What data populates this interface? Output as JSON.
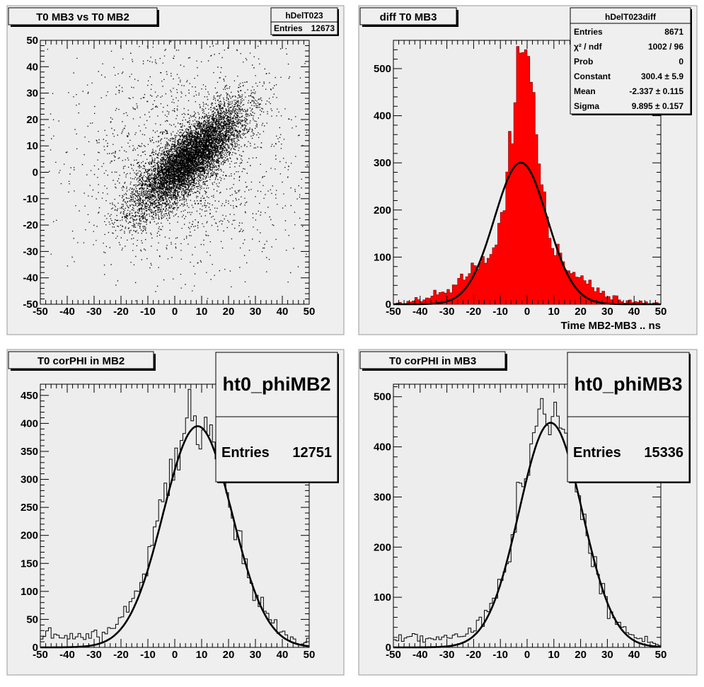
{
  "chart_data": [
    {
      "type": "scatter",
      "title": "T0 MB3 vs T0 MB2",
      "xlabel": "",
      "ylabel": "",
      "xlim": [
        -50,
        50
      ],
      "ylim": [
        -50,
        50
      ],
      "x_ticks": [
        "-50",
        "-40",
        "-30",
        "-20",
        "-10",
        "0",
        "10",
        "20",
        "30",
        "40",
        "50"
      ],
      "y_ticks": [
        "-50",
        "-40",
        "-30",
        "-20",
        "-10",
        "0",
        "10",
        "20",
        "30",
        "40",
        "50"
      ],
      "stats": {
        "name": "hDelT023",
        "rows": [
          {
            "label": "Entries",
            "value": "12673"
          }
        ]
      },
      "distribution": {
        "core": {
          "mean_x": 5,
          "mean_y": 5,
          "sigma_x": 10,
          "sigma_y": 10,
          "correlation": 0.8
        },
        "background_fraction": 0.18
      }
    },
    {
      "type": "bar",
      "title": "diff T0 MB3",
      "xlabel": "Time MB2-MB3  ..  ns",
      "ylabel": "",
      "xlim": [
        -50,
        50
      ],
      "ylim": [
        0,
        560
      ],
      "x_ticks": [
        "-50",
        "-40",
        "-30",
        "-20",
        "-10",
        "0",
        "10",
        "20",
        "30",
        "40",
        "50"
      ],
      "y_ticks": [
        "0",
        "100",
        "200",
        "300",
        "400",
        "500"
      ],
      "fill_color": "#ff0000",
      "bins": 100,
      "stats": {
        "name": "hDelT023diff",
        "rows": [
          {
            "label": "Entries",
            "value": "8671"
          },
          {
            "label": "χ² / ndf",
            "value": "1002 / 96"
          },
          {
            "label": "Prob",
            "value": "0"
          },
          {
            "label": "Constant",
            "value": "300.4 ± 5.9"
          },
          {
            "label": "Mean",
            "value": "-2.337 ± 0.115"
          },
          {
            "label": "Sigma",
            "value": "9.895 ± 0.157"
          }
        ]
      },
      "fit": {
        "function": "gaus",
        "constant": 300.4,
        "mean": -2.337,
        "sigma": 9.895
      },
      "shape": {
        "amplitude": 540,
        "mean": -1.2,
        "core_sigma": 4.2,
        "tail_sigma": 16,
        "tail_fraction": 0.27
      }
    },
    {
      "type": "bar",
      "title": "T0 corPHI in MB2",
      "xlabel": "",
      "ylabel": "",
      "xlim": [
        -50,
        50
      ],
      "ylim": [
        0,
        470
      ],
      "x_ticks": [
        "-50",
        "-40",
        "-30",
        "-20",
        "-10",
        "0",
        "10",
        "20",
        "30",
        "40",
        "50"
      ],
      "y_ticks": [
        "0",
        "50",
        "100",
        "150",
        "200",
        "250",
        "300",
        "350",
        "400",
        "450"
      ],
      "fill_color": "none",
      "bins": 100,
      "stats": {
        "name": "ht0_phiMB2",
        "rows": [
          {
            "label": "Entries",
            "value": "12751"
          }
        ]
      },
      "fit": {
        "function": "gaus",
        "constant": 395,
        "mean": 8.5,
        "sigma": 12.8
      },
      "shape": {
        "amplitude": 395,
        "mean": 8.0,
        "sigma": 12.5,
        "baseline": 15,
        "baseline_slope": -0.12
      }
    },
    {
      "type": "bar",
      "title": "T0 corPHI in MB3",
      "xlabel": "",
      "ylabel": "",
      "xlim": [
        -50,
        50
      ],
      "ylim": [
        0,
        525
      ],
      "x_ticks": [
        "-50",
        "-40",
        "-30",
        "-20",
        "-10",
        "0",
        "10",
        "20",
        "30",
        "40",
        "50"
      ],
      "y_ticks": [
        "0",
        "100",
        "200",
        "300",
        "400",
        "500"
      ],
      "fill_color": "none",
      "bins": 100,
      "stats": {
        "name": "ht0_phiMB3",
        "rows": [
          {
            "label": "Entries",
            "value": "15336"
          }
        ]
      },
      "fit": {
        "function": "gaus",
        "constant": 448,
        "mean": 8.8,
        "sigma": 11.8
      },
      "shape": {
        "amplitude": 450,
        "mean": 8.5,
        "sigma": 11.5,
        "baseline": 14,
        "baseline_slope": -0.12
      }
    }
  ]
}
